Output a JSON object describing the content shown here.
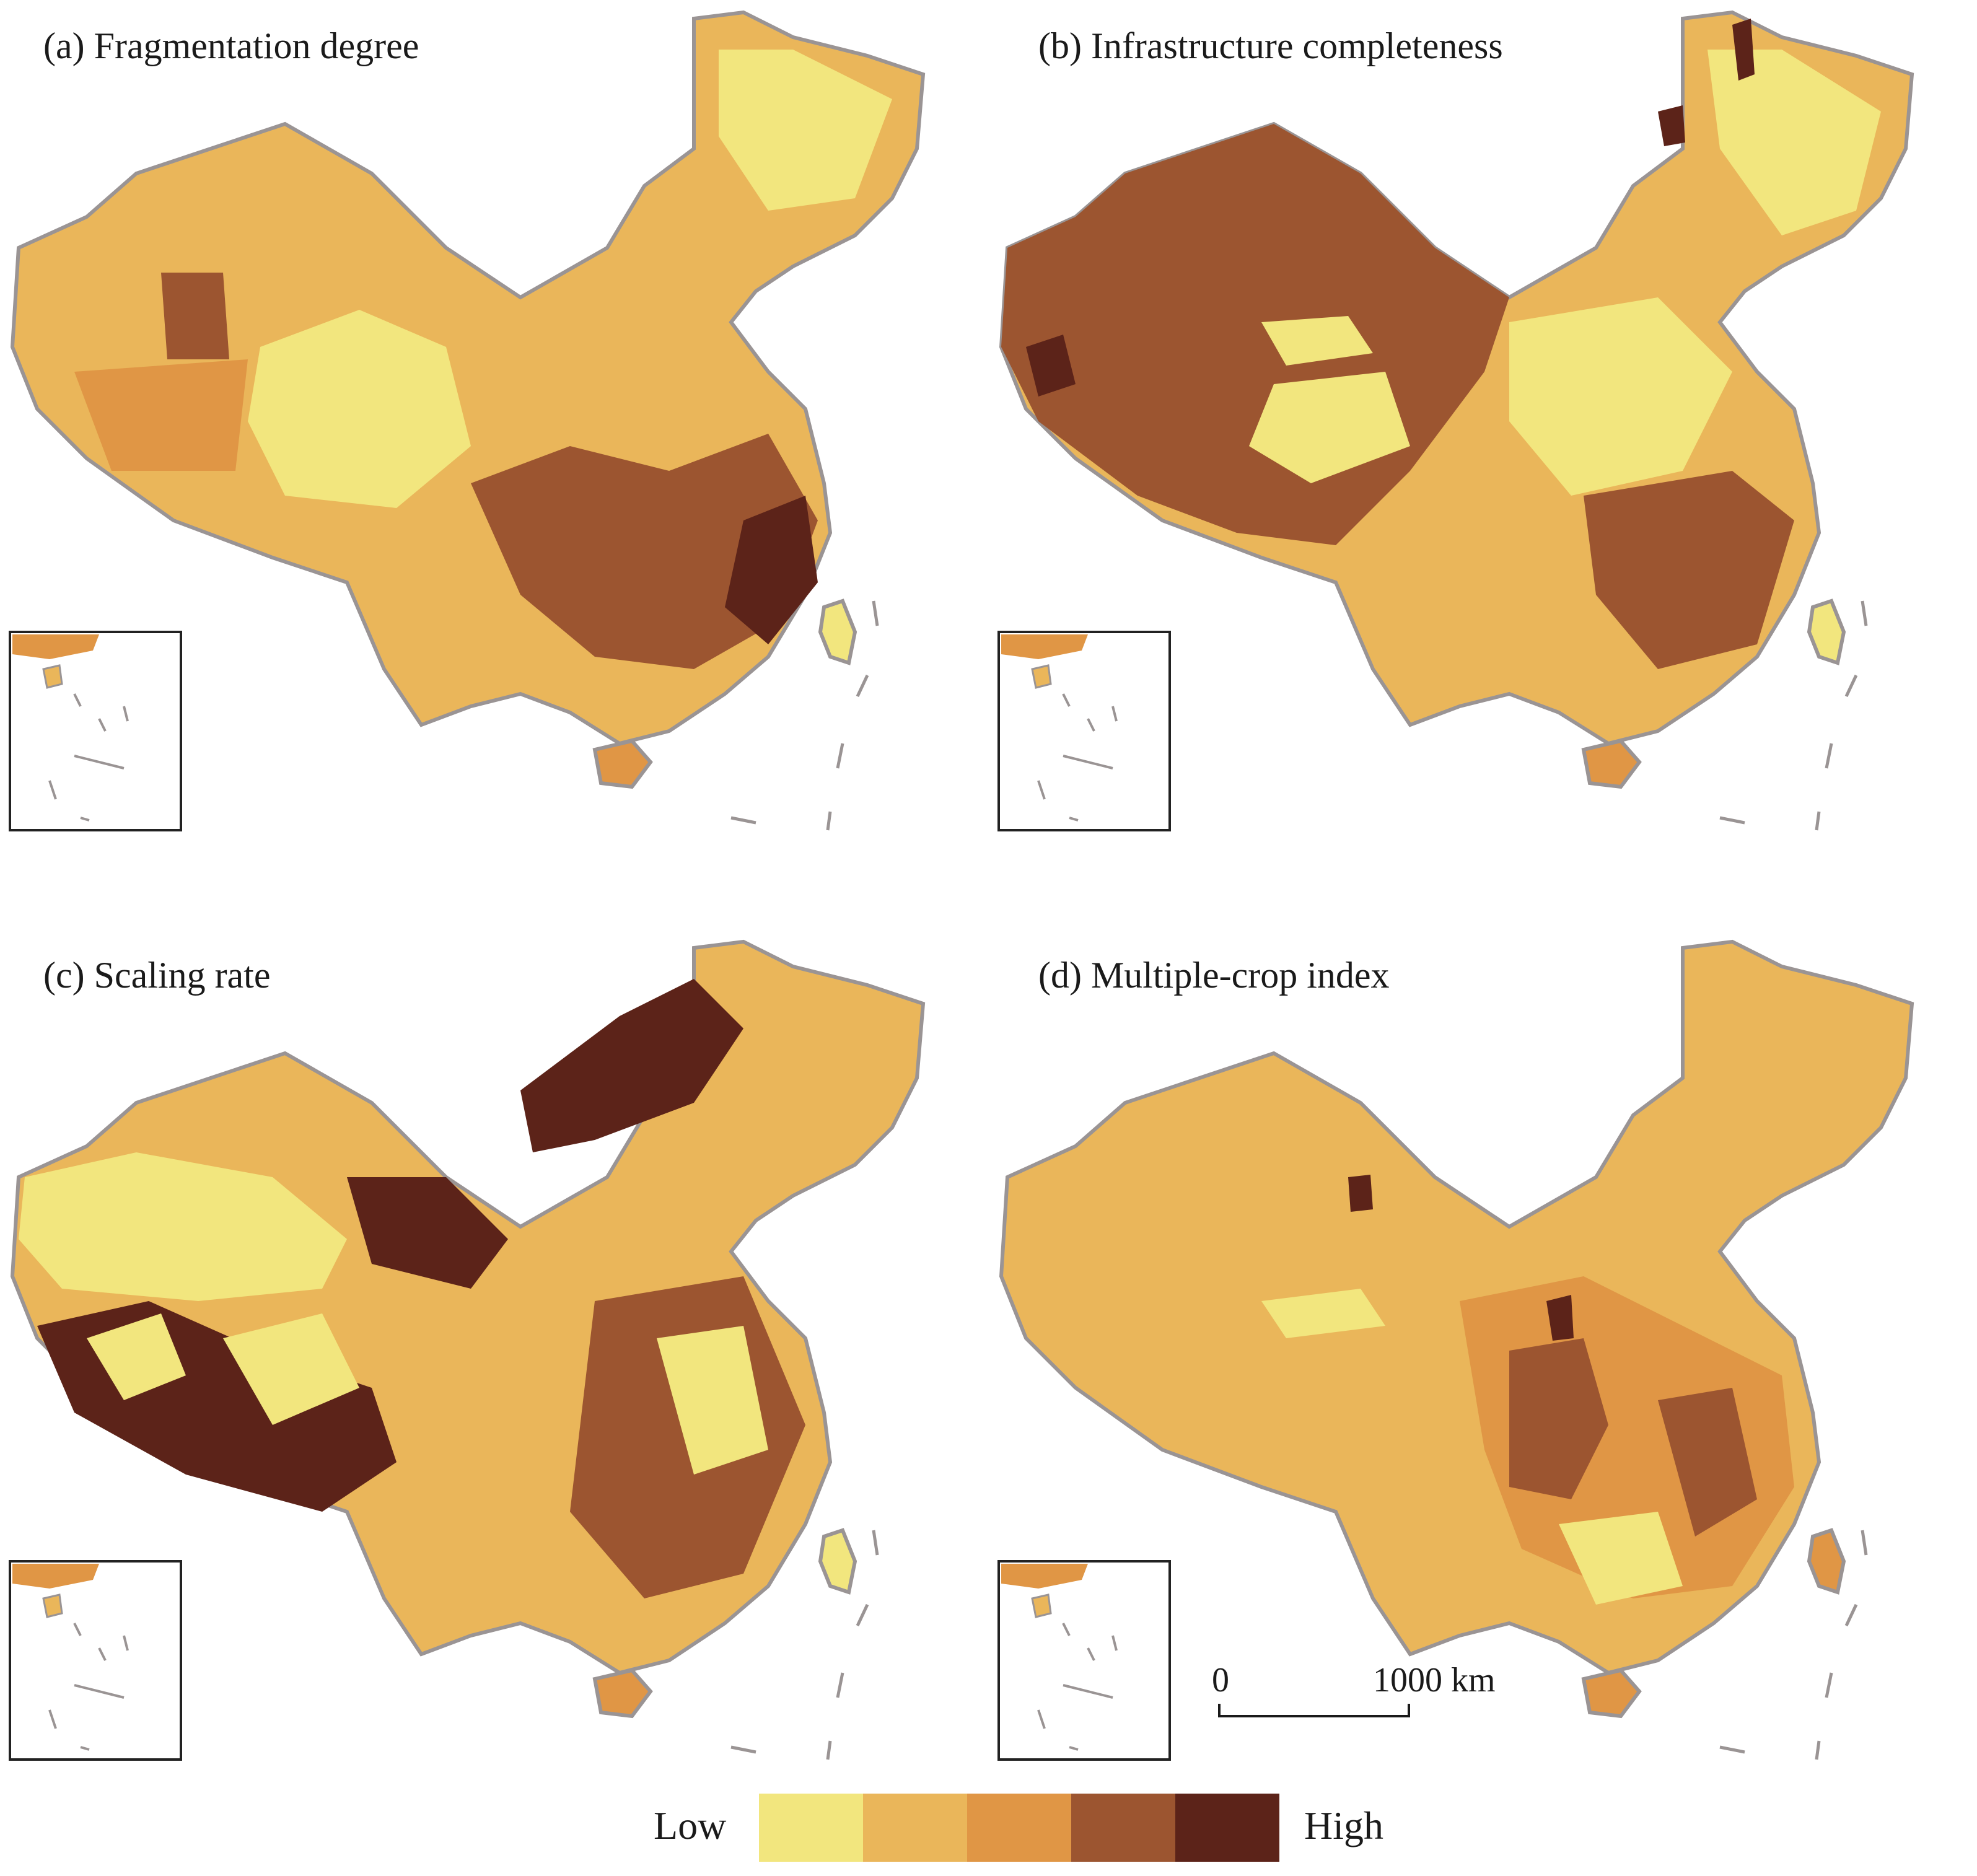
{
  "panels": [
    {
      "id": "a",
      "title": "(a) Fragmentation degree"
    },
    {
      "id": "b",
      "title": "(b) Infrastructure completeness"
    },
    {
      "id": "c",
      "title": "(c) Scaling rate"
    },
    {
      "id": "d",
      "title": "(d) Multiple-crop index"
    }
  ],
  "legend": {
    "low_label": "Low",
    "high_label": "High",
    "classes": [
      "#f2e67e",
      "#eab65a",
      "#e09645",
      "#9c5530",
      "#5c2319"
    ]
  },
  "scale_bar": {
    "start_label": "0",
    "end_label": "1000 km"
  },
  "colors": {
    "border": "#9a9494",
    "inset_frame": "#222222"
  }
}
